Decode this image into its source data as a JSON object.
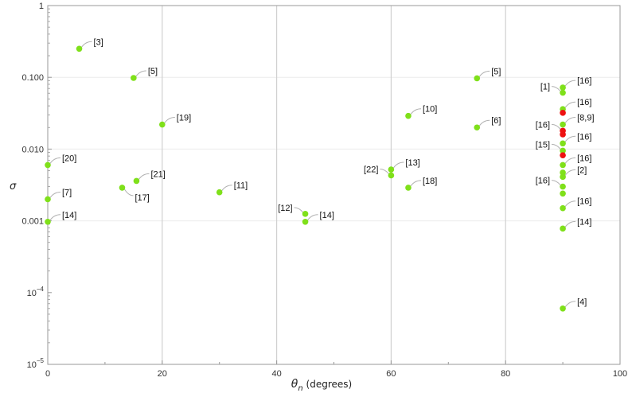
{
  "chart_data": {
    "type": "scatter",
    "title": "",
    "xlabel_symbol": "θ",
    "xlabel_sub": "n",
    "xlabel_units": " (degrees)",
    "ylabel": "σ",
    "xlim": [
      0,
      100
    ],
    "ylim": [
      1e-05,
      1
    ],
    "yscale": "log",
    "xticks": [
      {
        "value": 0,
        "label": "0"
      },
      {
        "value": 20,
        "label": "20"
      },
      {
        "value": 40,
        "label": "40"
      },
      {
        "value": 60,
        "label": "60"
      },
      {
        "value": 80,
        "label": "80"
      },
      {
        "value": 100,
        "label": "100"
      }
    ],
    "yticks": [
      {
        "value": 1e-05,
        "base": "10",
        "exp": "−5"
      },
      {
        "value": 0.0001,
        "base": "10",
        "exp": "−4"
      },
      {
        "value": 0.001,
        "base": "0.001",
        "exp": ""
      },
      {
        "value": 0.01,
        "base": "0.010",
        "exp": ""
      },
      {
        "value": 0.1,
        "base": "0.100",
        "exp": ""
      },
      {
        "value": 1,
        "base": "1",
        "exp": ""
      }
    ],
    "vgrid": [
      20,
      40,
      60,
      80
    ],
    "hgrid": [
      0.001,
      0.01,
      0.1
    ],
    "colors": {
      "green": "#7fe01a",
      "red": "#ee1111",
      "grid_major": "#d0d0d0",
      "grid_minor": "#ececec",
      "leader": "#b0b0b0",
      "frame": "#999999"
    },
    "points": [
      {
        "x": 5.5,
        "y": 0.25,
        "label": "[3]",
        "color": "green",
        "side": "right"
      },
      {
        "x": 15,
        "y": 0.098,
        "label": "[5]",
        "color": "green",
        "side": "right"
      },
      {
        "x": 20,
        "y": 0.022,
        "label": "[19]",
        "color": "green",
        "side": "right"
      },
      {
        "x": 0,
        "y": 0.006,
        "label": "[20]",
        "color": "green",
        "side": "right"
      },
      {
        "x": 0,
        "y": 0.002,
        "label": "[7]",
        "color": "green",
        "side": "right"
      },
      {
        "x": 0,
        "y": 0.00097,
        "label": "[14]",
        "color": "green",
        "side": "right"
      },
      {
        "x": 15.5,
        "y": 0.0036,
        "label": "[21]",
        "color": "green",
        "side": "right"
      },
      {
        "x": 13,
        "y": 0.0029,
        "label": "[17]",
        "color": "green",
        "side": "below"
      },
      {
        "x": 30,
        "y": 0.0025,
        "label": "[11]",
        "color": "green",
        "side": "right"
      },
      {
        "x": 45,
        "y": 0.00125,
        "label": "[12]",
        "color": "green",
        "side": "left"
      },
      {
        "x": 45,
        "y": 0.00097,
        "label": "[14]",
        "color": "green",
        "side": "right"
      },
      {
        "x": 60,
        "y": 0.0052,
        "label": "[13]",
        "color": "green",
        "side": "right"
      },
      {
        "x": 60,
        "y": 0.0043,
        "label": "[22]",
        "color": "green",
        "side": "left"
      },
      {
        "x": 63,
        "y": 0.029,
        "label": "[10]",
        "color": "green",
        "side": "right"
      },
      {
        "x": 63,
        "y": 0.0029,
        "label": "[18]",
        "color": "green",
        "side": "right"
      },
      {
        "x": 75,
        "y": 0.097,
        "label": "[5]",
        "color": "green",
        "side": "right"
      },
      {
        "x": 75,
        "y": 0.02,
        "label": "[6]",
        "color": "green",
        "side": "right"
      },
      {
        "x": 90,
        "y": 0.072,
        "label": "[16]",
        "color": "green",
        "side": "right"
      },
      {
        "x": 90,
        "y": 0.061,
        "label": "[1]",
        "color": "green",
        "side": "left"
      },
      {
        "x": 90,
        "y": 0.036,
        "label": "[16]",
        "color": "green",
        "side": "right"
      },
      {
        "x": 90,
        "y": 0.032,
        "label": "",
        "color": "red",
        "side": "none"
      },
      {
        "x": 90,
        "y": 0.022,
        "label": "[8,9]",
        "color": "green",
        "side": "right"
      },
      {
        "x": 90,
        "y": 0.018,
        "label": "[16]",
        "color": "red",
        "side": "left"
      },
      {
        "x": 90,
        "y": 0.016,
        "label": "",
        "color": "red",
        "side": "none"
      },
      {
        "x": 90,
        "y": 0.012,
        "label": "[16]",
        "color": "green",
        "side": "right"
      },
      {
        "x": 90,
        "y": 0.0095,
        "label": "[15]",
        "color": "green",
        "side": "left"
      },
      {
        "x": 90,
        "y": 0.0082,
        "label": "",
        "color": "red",
        "side": "none"
      },
      {
        "x": 90,
        "y": 0.006,
        "label": "[16]",
        "color": "green",
        "side": "right"
      },
      {
        "x": 90,
        "y": 0.0047,
        "label": "",
        "color": "green",
        "side": "none"
      },
      {
        "x": 90,
        "y": 0.0041,
        "label": "[2]",
        "color": "green",
        "side": "right"
      },
      {
        "x": 90,
        "y": 0.003,
        "label": "[16]",
        "color": "green",
        "side": "left"
      },
      {
        "x": 90,
        "y": 0.0024,
        "label": "",
        "color": "green",
        "side": "none"
      },
      {
        "x": 90,
        "y": 0.0015,
        "label": "[16]",
        "color": "green",
        "side": "right"
      },
      {
        "x": 90,
        "y": 0.00078,
        "label": "[14]",
        "color": "green",
        "side": "right"
      },
      {
        "x": 90,
        "y": 6e-05,
        "label": "[4]",
        "color": "green",
        "side": "right"
      }
    ]
  }
}
